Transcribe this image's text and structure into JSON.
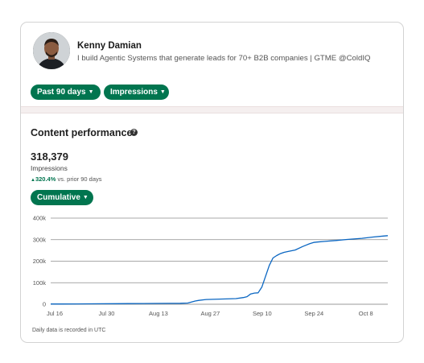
{
  "profile": {
    "name": "Kenny Damian",
    "headline": "I build Agentic Systems that generate leads for 70+ B2B companies | GTME @ColdIQ"
  },
  "filters": {
    "range_label": "Past 90 days",
    "metric_label": "Impressions"
  },
  "section": {
    "title": "Content performance",
    "help_icon": "question-circle-icon"
  },
  "summary": {
    "value": "318,379",
    "label": "Impressions",
    "change": "320.4%",
    "change_suffix": "vs. prior 90 days"
  },
  "chart_mode_label": "Cumulative",
  "footnote": "Daily data is recorded in UTC",
  "colors": {
    "accent": "#01754f",
    "line": "#0a66c2"
  },
  "chart_data": {
    "type": "line",
    "title": "",
    "xlabel": "",
    "ylabel": "",
    "x_ticks": [
      "Jul 16",
      "Jul 30",
      "Aug 13",
      "Aug 27",
      "Sep 10",
      "Sep 24",
      "Oct 8"
    ],
    "y_ticks": [
      "0",
      "100k",
      "200k",
      "300k",
      "400k"
    ],
    "ylim": [
      0,
      400000
    ],
    "grid": true,
    "series": [
      {
        "x": [
          0,
          3,
          7,
          10,
          14,
          18,
          21,
          25,
          28,
          32,
          35,
          37,
          38,
          39,
          40,
          42,
          50,
          52,
          53,
          54,
          55,
          56,
          57,
          58,
          59,
          60,
          61,
          62,
          63,
          64,
          66,
          68,
          70,
          71,
          72,
          74,
          77,
          80,
          84,
          87,
          90,
          91
        ],
        "values": [
          1000,
          1200,
          1500,
          1800,
          2100,
          2500,
          2900,
          3300,
          3700,
          4100,
          4500,
          5500,
          10000,
          15000,
          18000,
          22000,
          26000,
          31000,
          35000,
          48000,
          52000,
          53000,
          80000,
          130000,
          180000,
          215000,
          226000,
          235000,
          241000,
          245000,
          252000,
          268000,
          282000,
          287000,
          289000,
          292000,
          296000,
          301000,
          306000,
          312000,
          317000,
          318379
        ]
      }
    ]
  }
}
